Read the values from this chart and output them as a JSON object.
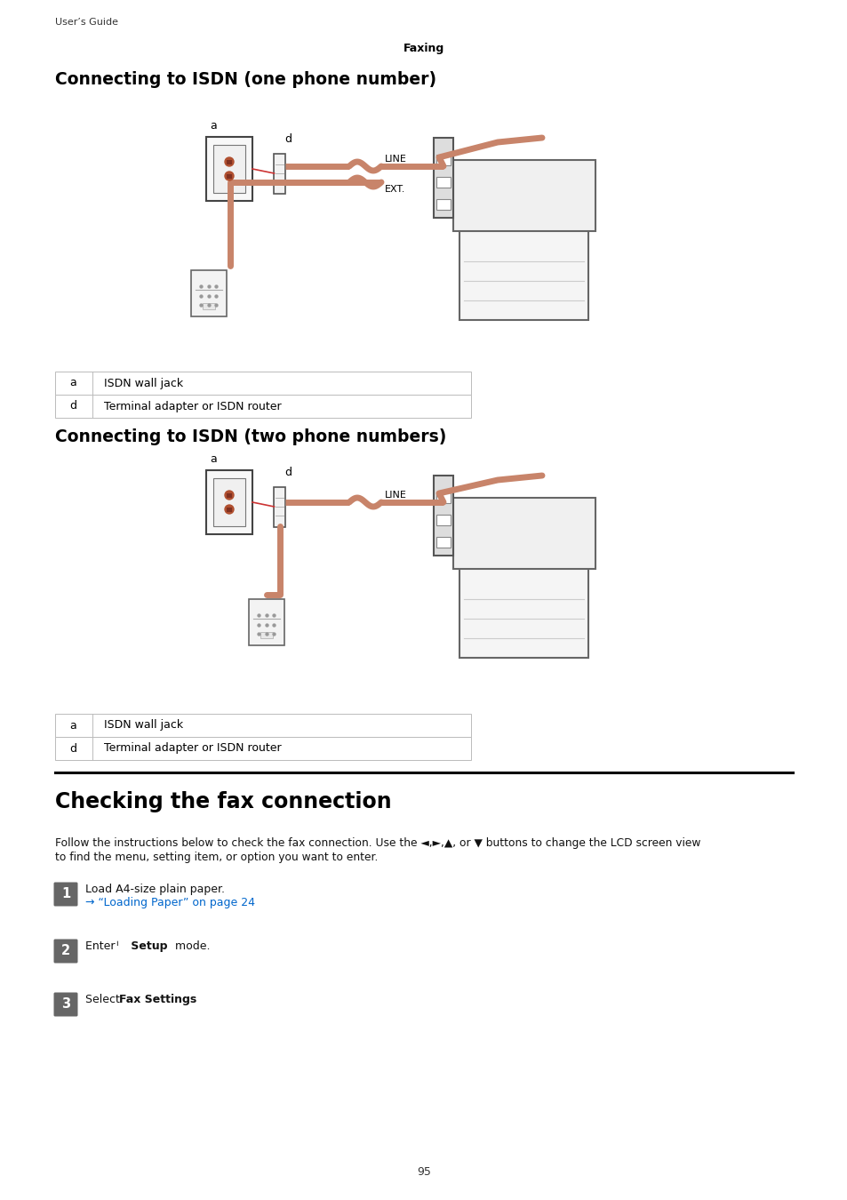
{
  "page_bg": "#ffffff",
  "header_text": "User’s Guide",
  "header_center_text": "Faxing",
  "section1_title": "Connecting to ISDN (one phone number)",
  "section2_title": "Connecting to ISDN (two phone numbers)",
  "section3_title": "Checking the fax connection",
  "table_rows": [
    [
      "a",
      "ISDN wall jack"
    ],
    [
      "d",
      "Terminal adapter or ISDN router"
    ]
  ],
  "body_text": "Follow the instructions below to check the fax connection. Use the ◄,►,▲, or ▼ buttons to change the LCD screen view to find the menu, setting item, or option you want to enter.",
  "step1_text": "Load A4-size plain paper.",
  "step1_link": "→ “Loading Paper” on page 24",
  "step1_link_color": "#0066cc",
  "step2_text_pre": "Enter ",
  "step2_icon": "ᴺ",
  "step2_bold": " Setup",
  "step2_post": " mode.",
  "step3_pre": "Select ",
  "step3_bold": "Fax Settings",
  "step3_post": ".",
  "page_number": "95",
  "cable_color": "#c8846a",
  "wall_jack_color": "#d4a090",
  "step_box_color": "#666666",
  "line_color": "#000000"
}
